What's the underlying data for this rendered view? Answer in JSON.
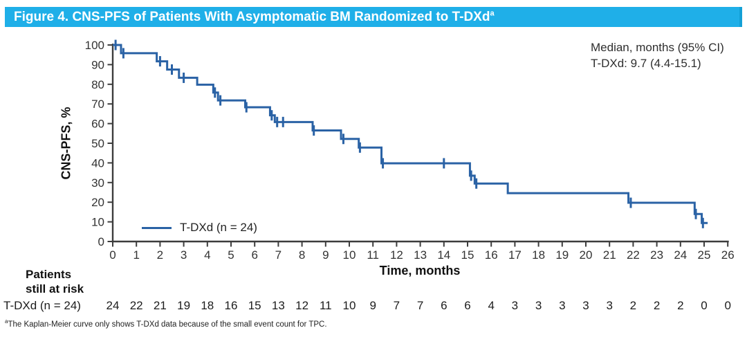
{
  "header": {
    "title_main": "Figure 4. CNS-PFS of Patients With Asymptomatic BM Randomized to T-DXd",
    "title_sup": "a",
    "bg_color": "#1FAFE8",
    "text_color": "#FFFFFF"
  },
  "chart_data": {
    "type": "line",
    "subtype": "kaplan-meier-step",
    "title": "CNS-PFS of Patients With Asymptomatic BM Randomized to T-DXd",
    "xlabel": "Time, months",
    "ylabel": "CNS-PFS, %",
    "xlim": [
      0,
      26
    ],
    "ylim": [
      0,
      100
    ],
    "x_ticks": [
      0,
      1,
      2,
      3,
      4,
      5,
      6,
      7,
      8,
      9,
      10,
      11,
      12,
      13,
      14,
      15,
      16,
      17,
      18,
      19,
      20,
      21,
      22,
      23,
      24,
      25,
      26
    ],
    "y_ticks": [
      0,
      10,
      20,
      30,
      40,
      50,
      60,
      70,
      80,
      90,
      100
    ],
    "grid": false,
    "legend": {
      "label": "T-DXd (n = 24)",
      "position": "lower-left-inside"
    },
    "annotation": {
      "line1": "Median, months (95% CI)",
      "line2": "T-DXd: 9.7 (4.4-15.1)"
    },
    "series": [
      {
        "name": "T-DXd (n = 24)",
        "color": "#2A62A5",
        "steps": [
          [
            0,
            100
          ],
          [
            0.35,
            95.8
          ],
          [
            1.86,
            91.7
          ],
          [
            2.3,
            87.5
          ],
          [
            2.8,
            83.3
          ],
          [
            3.57,
            79.8
          ],
          [
            4.25,
            75.8
          ],
          [
            4.45,
            71.8
          ],
          [
            5.6,
            68.3
          ],
          [
            6.65,
            64.2
          ],
          [
            6.85,
            60.8
          ],
          [
            8.45,
            56.5
          ],
          [
            9.65,
            52.2
          ],
          [
            10.4,
            47.8
          ],
          [
            11.36,
            39.8
          ],
          [
            15.1,
            33.5
          ],
          [
            15.3,
            29.5
          ],
          [
            16.7,
            24.6
          ],
          [
            21.8,
            19.7
          ],
          [
            24.6,
            14.0
          ],
          [
            24.9,
            9.4
          ]
        ],
        "end_time": 25.15,
        "censor_marks": [
          [
            0.12,
            100
          ],
          [
            0.45,
            95.8
          ],
          [
            2.0,
            91.7
          ],
          [
            2.5,
            87.5
          ],
          [
            3.0,
            83.3
          ],
          [
            4.32,
            75.8
          ],
          [
            4.55,
            71.8
          ],
          [
            5.65,
            68.3
          ],
          [
            6.72,
            64.2
          ],
          [
            6.95,
            60.8
          ],
          [
            7.2,
            60.8
          ],
          [
            8.5,
            56.5
          ],
          [
            9.75,
            52.2
          ],
          [
            10.45,
            47.8
          ],
          [
            11.42,
            39.8
          ],
          [
            14.0,
            39.8
          ],
          [
            15.15,
            33.5
          ],
          [
            15.37,
            29.5
          ],
          [
            21.9,
            19.7
          ],
          [
            24.65,
            14.0
          ],
          [
            24.95,
            9.4
          ]
        ]
      }
    ]
  },
  "risk_table": {
    "header_line1": "Patients",
    "header_line2": "still at risk",
    "row_label": "T-DXd (n = 24)",
    "time_points": [
      0,
      1,
      2,
      3,
      4,
      5,
      6,
      7,
      8,
      9,
      10,
      11,
      12,
      13,
      14,
      15,
      16,
      17,
      18,
      19,
      20,
      21,
      22,
      23,
      24,
      25,
      26
    ],
    "values": [
      "24",
      "22",
      "21",
      "19",
      "18",
      "16",
      "15",
      "13",
      "12",
      "11",
      "10",
      "9",
      "7",
      "7",
      "6",
      "6",
      "4",
      "3",
      "3",
      "3",
      "3",
      "3",
      "2",
      "2",
      "2",
      "0",
      "0"
    ]
  },
  "footnote": {
    "sup": "a",
    "text": "The Kaplan-Meier curve only shows T-DXd data because of the small event count for TPC."
  },
  "colors": {
    "curve": "#2A62A5",
    "axis": "#3c3c3c",
    "tick_label": "#333333",
    "header_bg": "#1FAFE8"
  }
}
